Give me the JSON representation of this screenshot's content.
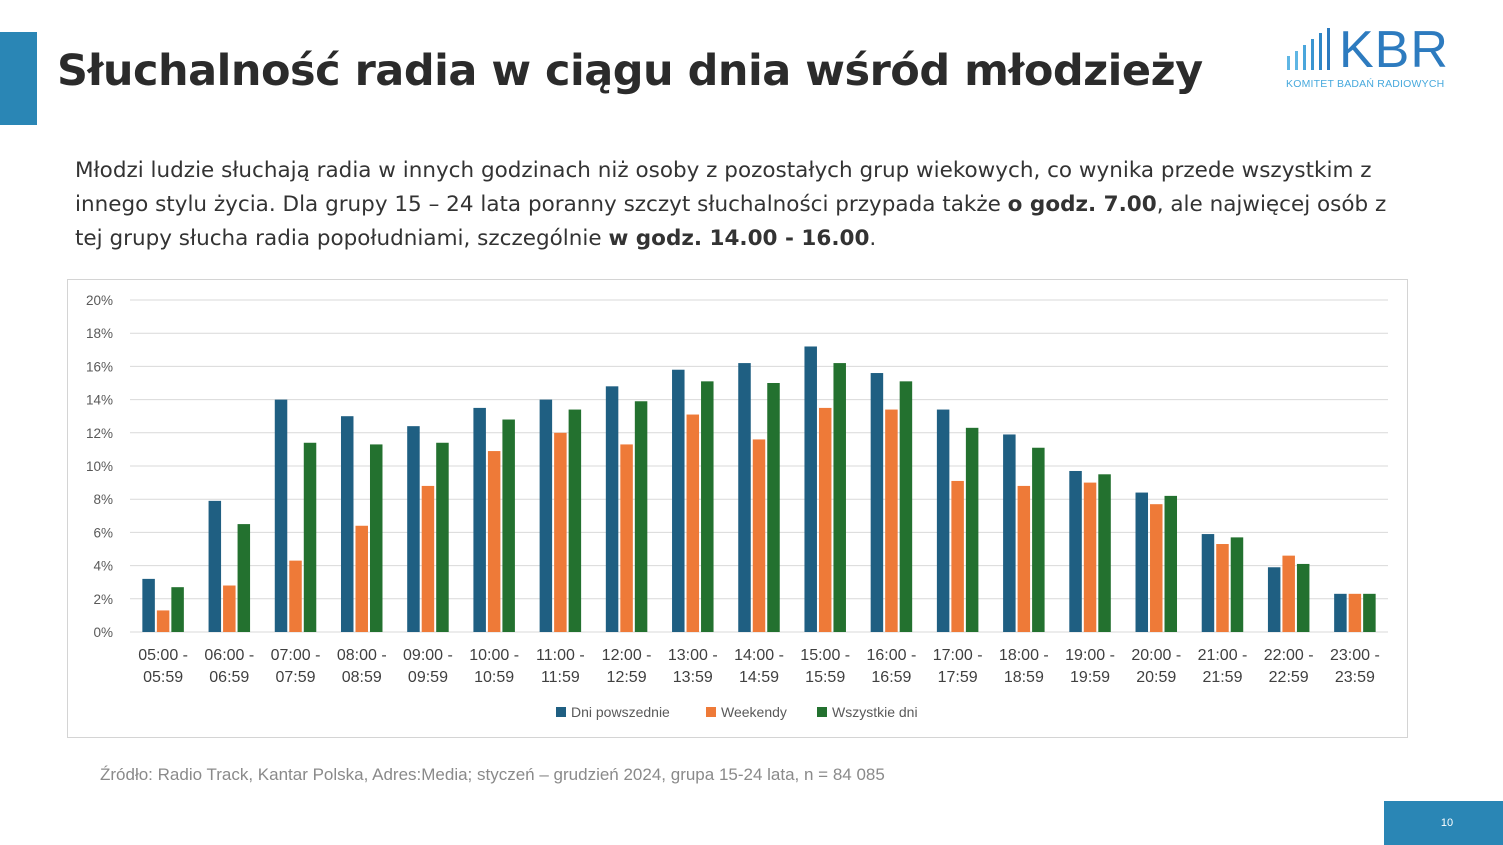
{
  "slide": {
    "title": "Słuchalność radia w ciągu dnia wśród młodzieży",
    "intro_part1": "Młodzi ludzie słuchają radia w innych godzinach niż osoby z pozostałych grup wiekowych, co wynika przede wszystkim z innego stylu życia. Dla grupy 15 – 24 lata poranny szczyt słuchalności przypada także ",
    "intro_bold1": "o godz. 7.00",
    "intro_part2": ", ale najwięcej osób z tej grupy słucha radia popołudniami, szczególnie ",
    "intro_bold2": "w godz. 14.00 - 16.00",
    "intro_part3": ".",
    "source": "Źródło: Radio Track, Kantar Polska, Adres:Media; styczeń – grudzień 2024, grupa 15-24 lata, n = 84 085",
    "page_number": "10"
  },
  "logo": {
    "word": "KBR",
    "subtitle": "KOMITET BADAŃ RADIOWYCH"
  },
  "colors": {
    "accent": "#2a86b5",
    "series_weekdays": "#1f5f82",
    "series_weekends": "#ee7a38",
    "series_all": "#23712f",
    "gridline": "#d9d9d9"
  },
  "chart_data": {
    "type": "bar",
    "ylim": [
      0,
      20
    ],
    "yticks": [
      "0%",
      "2%",
      "4%",
      "6%",
      "8%",
      "10%",
      "12%",
      "14%",
      "16%",
      "18%",
      "20%"
    ],
    "unit": "%",
    "grid": true,
    "legend_position": "bottom",
    "categories": [
      [
        "05:00 -",
        "05:59"
      ],
      [
        "06:00 -",
        "06:59"
      ],
      [
        "07:00 -",
        "07:59"
      ],
      [
        "08:00 -",
        "08:59"
      ],
      [
        "09:00 -",
        "09:59"
      ],
      [
        "10:00 -",
        "10:59"
      ],
      [
        "11:00 -",
        "11:59"
      ],
      [
        "12:00 -",
        "12:59"
      ],
      [
        "13:00 -",
        "13:59"
      ],
      [
        "14:00 -",
        "14:59"
      ],
      [
        "15:00 -",
        "15:59"
      ],
      [
        "16:00 -",
        "16:59"
      ],
      [
        "17:00 -",
        "17:59"
      ],
      [
        "18:00 -",
        "18:59"
      ],
      [
        "19:00 -",
        "19:59"
      ],
      [
        "20:00 -",
        "20:59"
      ],
      [
        "21:00 -",
        "21:59"
      ],
      [
        "22:00 -",
        "22:59"
      ],
      [
        "23:00 -",
        "23:59"
      ]
    ],
    "series": [
      {
        "name": "Dni powszednie",
        "color": "#1f5f82",
        "values": [
          3.2,
          7.9,
          14.0,
          13.0,
          12.4,
          13.5,
          14.0,
          14.8,
          15.8,
          16.2,
          17.2,
          15.6,
          13.4,
          11.9,
          9.7,
          8.4,
          5.9,
          3.9,
          2.3
        ]
      },
      {
        "name": "Weekendy",
        "color": "#ee7a38",
        "values": [
          1.3,
          2.8,
          4.3,
          6.4,
          8.8,
          10.9,
          12.0,
          11.3,
          13.1,
          11.6,
          13.5,
          13.4,
          9.1,
          8.8,
          9.0,
          7.7,
          5.3,
          4.6,
          2.3
        ]
      },
      {
        "name": "Wszystkie dni",
        "color": "#23712f",
        "values": [
          2.7,
          6.5,
          11.4,
          11.3,
          11.4,
          12.8,
          13.4,
          13.9,
          15.1,
          15.0,
          16.2,
          15.1,
          12.3,
          11.1,
          9.5,
          8.2,
          5.7,
          4.1,
          2.3
        ]
      }
    ]
  }
}
